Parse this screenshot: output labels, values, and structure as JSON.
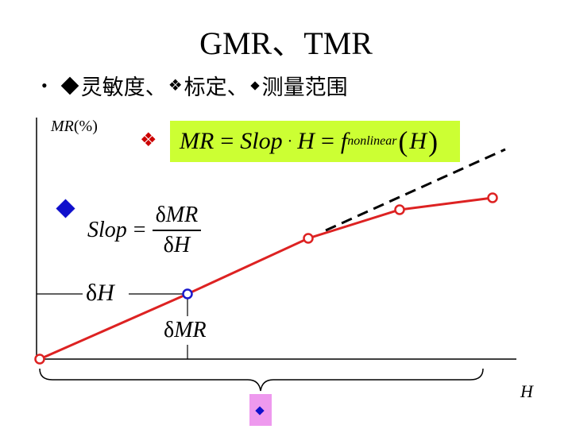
{
  "slide": {
    "title": "GMR、TMR",
    "bullet": {
      "item1": "灵敏度、",
      "item2": "标定、",
      "item3": "测量范围"
    }
  },
  "diagram": {
    "y_axis_label": "MR",
    "y_axis_unit": "(%)",
    "x_axis_label": "H",
    "formula_main": {
      "lhs": "MR",
      "eq1": "=",
      "slop": "Slop",
      "h": "H",
      "eq2": "=",
      "f": "f",
      "f_sub": "nonlinear",
      "arg": "H"
    },
    "formula_slop": {
      "lhs": "Slop",
      "eq": "=",
      "num_delta": "δ",
      "num_var": "MR",
      "den_delta": "δ",
      "den_var": "H"
    },
    "delta_h_label": {
      "delta": "δ",
      "var": "H"
    },
    "delta_mr_label": {
      "delta": "δ",
      "var": "MR"
    },
    "colors": {
      "curve": "#dd2222",
      "marker_normal": "#dd2222",
      "marker_highlight": "#1a1acc",
      "formula_bg": "#ccff33",
      "bracket_box": "#ee99ee"
    }
  }
}
